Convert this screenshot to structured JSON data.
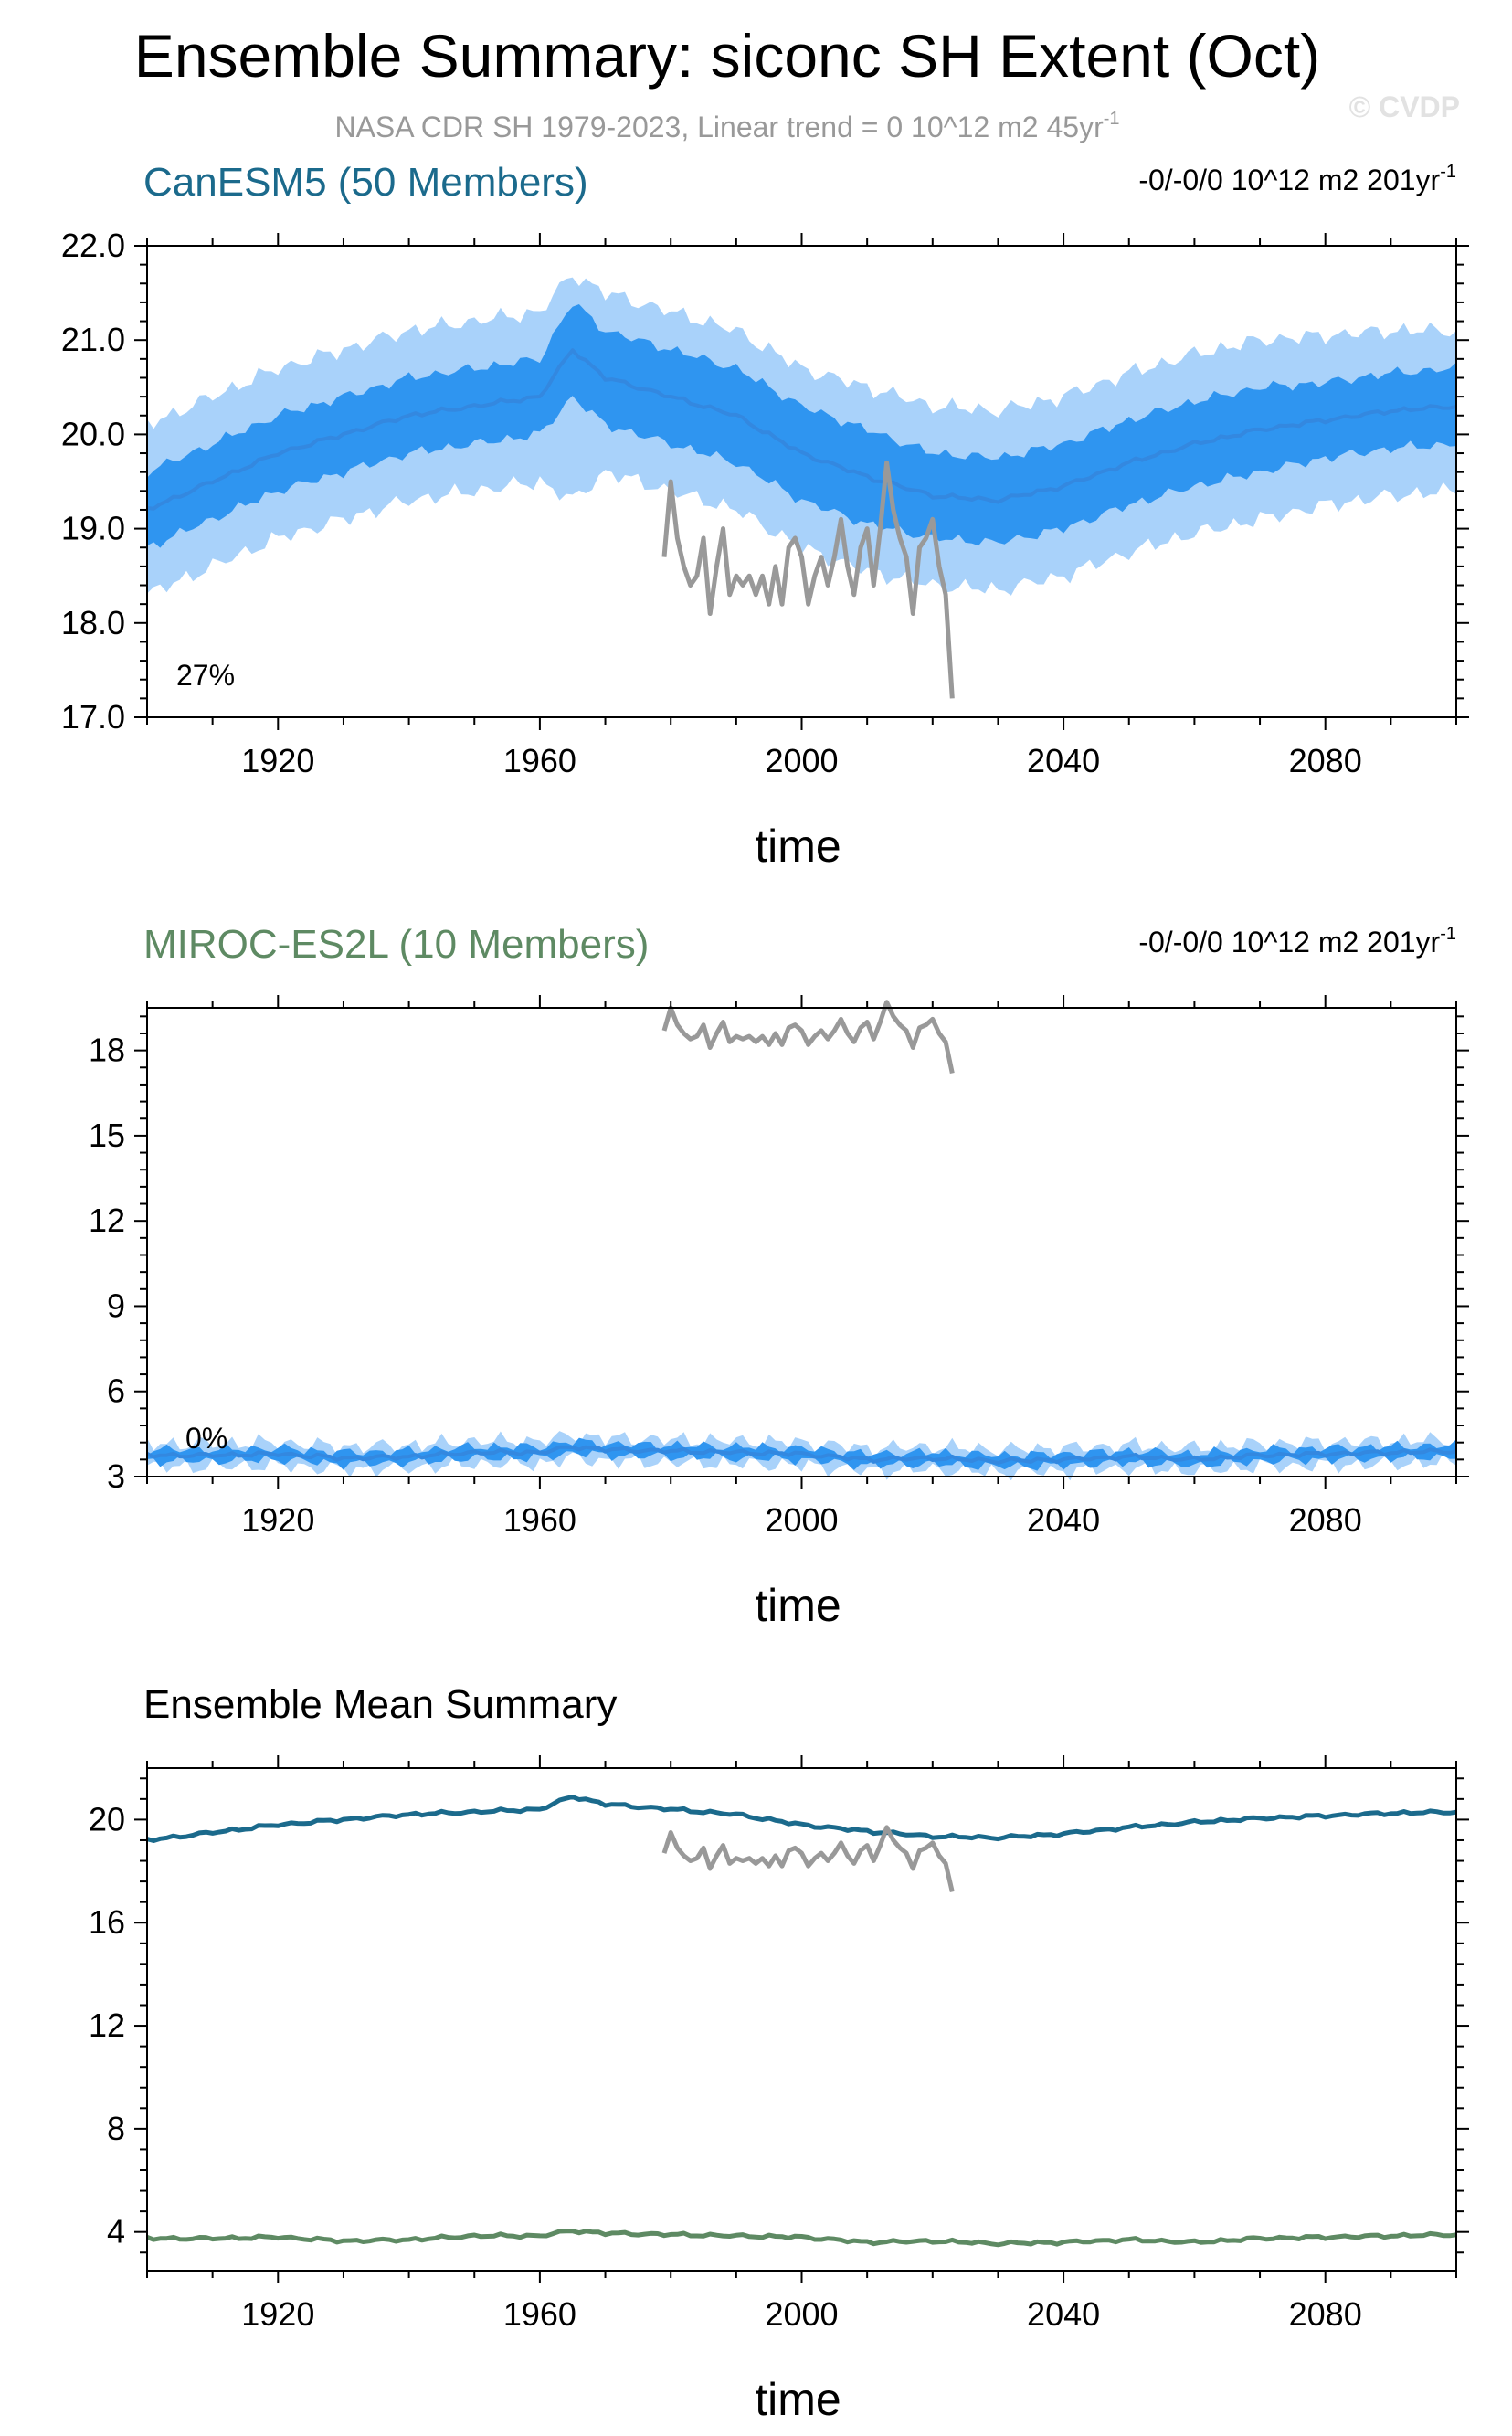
{
  "figure": {
    "title": "Ensemble Summary: siconc SH Extent (Oct)",
    "subtitle_text": "NASA CDR SH 1979-2023, Linear trend = 0 10^12 m2 45yr",
    "subtitle_exponent": "-1",
    "watermark": "© CVDP"
  },
  "colors": {
    "canesm5": "#1b6a8c",
    "miroc": "#5e8a63",
    "observations": "#999999",
    "ensemble_mean_line": "#3388e0",
    "inner_range": "#2f95f0",
    "outer_range": "#a9d2fa"
  },
  "chart_data": [
    {
      "type": "area",
      "panel_title": "CanESM5 (50 Members)",
      "trend_text": "-0/-0/0 10^12 m2 201yr",
      "trend_exponent": "-1",
      "percent_label": "27%",
      "xlabel": "time",
      "ylabel": "",
      "xlim": [
        1900,
        2100
      ],
      "ylim": [
        17,
        22
      ],
      "xticks": [
        1920,
        1960,
        2000,
        2040,
        2080
      ],
      "yticks": [
        17,
        18,
        19,
        20,
        21,
        22
      ],
      "ytick_labels": [
        "17.0",
        "18.0",
        "19.0",
        "20.0",
        "21.0",
        "22.0"
      ],
      "series": [
        {
          "name": "ensemble mean",
          "role": "mean",
          "x": [
            1900,
            1910,
            1920,
            1930,
            1940,
            1950,
            1960,
            1965,
            1970,
            1980,
            1990,
            2000,
            2010,
            2020,
            2030,
            2040,
            2050,
            2060,
            2070,
            2080,
            2090,
            2100
          ],
          "y": [
            19.2,
            19.5,
            19.8,
            20.0,
            20.2,
            20.3,
            20.4,
            20.9,
            20.6,
            20.4,
            20.2,
            19.8,
            19.55,
            19.35,
            19.3,
            19.45,
            19.7,
            19.9,
            20.05,
            20.15,
            20.25,
            20.3
          ]
        },
        {
          "name": "inner range",
          "role": "band-inner",
          "x": [
            1900,
            1910,
            1920,
            1930,
            1940,
            1950,
            1960,
            1965,
            1970,
            1980,
            1990,
            2000,
            2010,
            2020,
            2030,
            2040,
            2050,
            2060,
            2070,
            2080,
            2090,
            2100
          ],
          "low": [
            18.8,
            19.1,
            19.4,
            19.6,
            19.8,
            19.9,
            20.0,
            20.4,
            20.1,
            19.9,
            19.7,
            19.3,
            19.05,
            18.9,
            18.85,
            19.0,
            19.25,
            19.45,
            19.6,
            19.75,
            19.85,
            19.9
          ],
          "high": [
            19.6,
            19.9,
            20.2,
            20.4,
            20.6,
            20.7,
            20.8,
            21.4,
            21.1,
            20.9,
            20.7,
            20.3,
            20.05,
            19.8,
            19.75,
            19.9,
            20.15,
            20.35,
            20.5,
            20.55,
            20.65,
            20.7
          ]
        },
        {
          "name": "full range",
          "role": "band-outer",
          "x": [
            1900,
            1910,
            1920,
            1930,
            1940,
            1950,
            1960,
            1965,
            1970,
            1980,
            1990,
            2000,
            2010,
            2020,
            2030,
            2040,
            2050,
            2060,
            2070,
            2080,
            2090,
            2100
          ],
          "low": [
            18.3,
            18.6,
            18.9,
            19.1,
            19.3,
            19.4,
            19.5,
            19.3,
            19.6,
            19.4,
            19.2,
            18.8,
            18.55,
            18.4,
            18.35,
            18.5,
            18.75,
            18.95,
            19.1,
            19.25,
            19.35,
            19.4
          ],
          "high": [
            20.1,
            20.4,
            20.7,
            20.9,
            21.1,
            21.2,
            21.3,
            21.7,
            21.5,
            21.3,
            21.1,
            20.7,
            20.5,
            20.3,
            20.25,
            20.4,
            20.65,
            20.85,
            21.0,
            21.05,
            21.1,
            21.1
          ]
        },
        {
          "name": "NASA CDR SH",
          "role": "obs",
          "x": [
            1979,
            1980,
            1981,
            1982,
            1983,
            1984,
            1985,
            1986,
            1987,
            1988,
            1989,
            1990,
            1991,
            1992,
            1993,
            1994,
            1995,
            1996,
            1997,
            1998,
            1999,
            2000,
            2001,
            2002,
            2003,
            2004,
            2005,
            2006,
            2007,
            2008,
            2009,
            2010,
            2011,
            2012,
            2013,
            2014,
            2015,
            2016,
            2017,
            2018,
            2019,
            2020,
            2021,
            2022,
            2023
          ],
          "y": [
            18.7,
            19.5,
            18.9,
            18.6,
            18.4,
            18.5,
            18.9,
            18.1,
            18.6,
            19.0,
            18.3,
            18.5,
            18.4,
            18.5,
            18.3,
            18.5,
            18.2,
            18.6,
            18.2,
            18.8,
            18.9,
            18.7,
            18.2,
            18.5,
            18.7,
            18.4,
            18.7,
            19.1,
            18.6,
            18.3,
            18.8,
            19.0,
            18.4,
            19.0,
            19.7,
            19.2,
            18.9,
            18.7,
            18.1,
            18.8,
            18.9,
            19.1,
            18.6,
            18.3,
            17.2
          ]
        }
      ]
    },
    {
      "type": "area",
      "panel_title": "MIROC-ES2L (10 Members)",
      "trend_text": "-0/-0/0 10^12 m2 201yr",
      "trend_exponent": "-1",
      "percent_label": "0%",
      "xlabel": "time",
      "ylabel": "",
      "xlim": [
        1900,
        2100
      ],
      "ylim": [
        3,
        19.5
      ],
      "xticks": [
        1920,
        1960,
        2000,
        2040,
        2080
      ],
      "yticks": [
        3,
        6,
        9,
        12,
        15,
        18
      ],
      "ytick_labels": [
        "3",
        "6",
        "9",
        "12",
        "15",
        "18"
      ],
      "series": [
        {
          "name": "ensemble mean",
          "role": "mean",
          "x": [
            1900,
            1910,
            1920,
            1930,
            1940,
            1950,
            1960,
            1965,
            1970,
            1980,
            1990,
            2000,
            2010,
            2020,
            2030,
            2040,
            2050,
            2060,
            2070,
            2080,
            2090,
            2100
          ],
          "y": [
            3.75,
            3.75,
            3.8,
            3.65,
            3.7,
            3.85,
            3.85,
            4.05,
            3.95,
            3.9,
            3.85,
            3.8,
            3.6,
            3.65,
            3.55,
            3.6,
            3.7,
            3.6,
            3.75,
            3.8,
            3.85,
            3.9
          ]
        },
        {
          "name": "inner range",
          "role": "band-inner",
          "x": [
            1900,
            1910,
            1920,
            1930,
            1940,
            1950,
            1960,
            1965,
            1970,
            1980,
            1990,
            2000,
            2010,
            2020,
            2030,
            2040,
            2050,
            2060,
            2070,
            2080,
            2090,
            2100
          ],
          "low": [
            3.55,
            3.55,
            3.6,
            3.45,
            3.5,
            3.65,
            3.65,
            3.85,
            3.75,
            3.7,
            3.65,
            3.6,
            3.4,
            3.45,
            3.35,
            3.4,
            3.5,
            3.4,
            3.55,
            3.6,
            3.65,
            3.7
          ],
          "high": [
            3.95,
            3.95,
            4.0,
            3.85,
            3.9,
            4.05,
            4.05,
            4.25,
            4.15,
            4.1,
            4.05,
            4.0,
            3.8,
            3.85,
            3.75,
            3.8,
            3.9,
            3.8,
            3.95,
            4.0,
            4.05,
            4.1
          ]
        },
        {
          "name": "full range",
          "role": "band-outer",
          "x": [
            1900,
            1910,
            1920,
            1930,
            1940,
            1950,
            1960,
            1965,
            1970,
            1980,
            1990,
            2000,
            2010,
            2020,
            2030,
            2040,
            2050,
            2060,
            2070,
            2080,
            2090,
            2100
          ],
          "low": [
            3.35,
            3.35,
            3.4,
            3.25,
            3.3,
            3.45,
            3.45,
            3.65,
            3.55,
            3.5,
            3.45,
            3.4,
            3.2,
            3.25,
            3.15,
            3.2,
            3.3,
            3.2,
            3.35,
            3.4,
            3.45,
            3.5
          ],
          "high": [
            4.15,
            4.15,
            4.2,
            4.05,
            4.1,
            4.25,
            4.25,
            4.45,
            4.35,
            4.3,
            4.25,
            4.2,
            4.0,
            4.05,
            3.95,
            4.0,
            4.1,
            4.0,
            4.15,
            4.2,
            4.25,
            4.3
          ]
        },
        {
          "name": "NASA CDR SH",
          "role": "obs",
          "x": [
            1979,
            1980,
            1981,
            1982,
            1983,
            1984,
            1985,
            1986,
            1987,
            1988,
            1989,
            1990,
            1991,
            1992,
            1993,
            1994,
            1995,
            1996,
            1997,
            1998,
            1999,
            2000,
            2001,
            2002,
            2003,
            2004,
            2005,
            2006,
            2007,
            2008,
            2009,
            2010,
            2011,
            2012,
            2013,
            2014,
            2015,
            2016,
            2017,
            2018,
            2019,
            2020,
            2021,
            2022,
            2023
          ],
          "y": [
            18.7,
            19.5,
            18.9,
            18.6,
            18.4,
            18.5,
            18.9,
            18.1,
            18.6,
            19.0,
            18.3,
            18.5,
            18.4,
            18.5,
            18.3,
            18.5,
            18.2,
            18.6,
            18.2,
            18.8,
            18.9,
            18.7,
            18.2,
            18.5,
            18.7,
            18.4,
            18.7,
            19.1,
            18.6,
            18.3,
            18.8,
            19.0,
            18.4,
            19.0,
            19.7,
            19.2,
            18.9,
            18.7,
            18.1,
            18.8,
            18.9,
            19.1,
            18.6,
            18.3,
            17.2
          ]
        }
      ]
    },
    {
      "type": "line",
      "panel_title": "Ensemble Mean Summary",
      "xlabel": "time",
      "ylabel": "",
      "xlim": [
        1900,
        2100
      ],
      "ylim": [
        2.5,
        22
      ],
      "xticks": [
        1920,
        1960,
        2000,
        2040,
        2080
      ],
      "yticks": [
        4,
        8,
        12,
        16,
        20
      ],
      "ytick_labels": [
        "4",
        "8",
        "12",
        "16",
        "20"
      ],
      "series": [
        {
          "name": "CanESM5",
          "role": "model-mean",
          "color_key": "canesm5",
          "x": [
            1900,
            1910,
            1920,
            1930,
            1940,
            1950,
            1960,
            1965,
            1970,
            1980,
            1990,
            2000,
            2010,
            2020,
            2030,
            2040,
            2050,
            2060,
            2070,
            2080,
            2090,
            2100
          ],
          "y": [
            19.2,
            19.5,
            19.8,
            20.0,
            20.2,
            20.3,
            20.4,
            20.9,
            20.6,
            20.4,
            20.2,
            19.8,
            19.55,
            19.35,
            19.3,
            19.45,
            19.7,
            19.9,
            20.05,
            20.15,
            20.25,
            20.3
          ]
        },
        {
          "name": "MIROC-ES2L",
          "role": "model-mean",
          "color_key": "miroc",
          "x": [
            1900,
            1910,
            1920,
            1930,
            1940,
            1950,
            1960,
            1965,
            1970,
            1980,
            1990,
            2000,
            2010,
            2020,
            2030,
            2040,
            2050,
            2060,
            2070,
            2080,
            2090,
            2100
          ],
          "y": [
            3.75,
            3.75,
            3.8,
            3.65,
            3.7,
            3.85,
            3.85,
            4.05,
            3.95,
            3.9,
            3.85,
            3.8,
            3.6,
            3.65,
            3.55,
            3.6,
            3.7,
            3.6,
            3.75,
            3.8,
            3.85,
            3.9
          ]
        },
        {
          "name": "NASA CDR SH",
          "role": "obs",
          "x": [
            1979,
            1980,
            1981,
            1982,
            1983,
            1984,
            1985,
            1986,
            1987,
            1988,
            1989,
            1990,
            1991,
            1992,
            1993,
            1994,
            1995,
            1996,
            1997,
            1998,
            1999,
            2000,
            2001,
            2002,
            2003,
            2004,
            2005,
            2006,
            2007,
            2008,
            2009,
            2010,
            2011,
            2012,
            2013,
            2014,
            2015,
            2016,
            2017,
            2018,
            2019,
            2020,
            2021,
            2022,
            2023
          ],
          "y": [
            18.7,
            19.5,
            18.9,
            18.6,
            18.4,
            18.5,
            18.9,
            18.1,
            18.6,
            19.0,
            18.3,
            18.5,
            18.4,
            18.5,
            18.3,
            18.5,
            18.2,
            18.6,
            18.2,
            18.8,
            18.9,
            18.7,
            18.2,
            18.5,
            18.7,
            18.4,
            18.7,
            19.1,
            18.6,
            18.3,
            18.8,
            19.0,
            18.4,
            19.0,
            19.7,
            19.2,
            18.9,
            18.7,
            18.1,
            18.8,
            18.9,
            19.1,
            18.6,
            18.3,
            17.2
          ]
        }
      ]
    }
  ]
}
